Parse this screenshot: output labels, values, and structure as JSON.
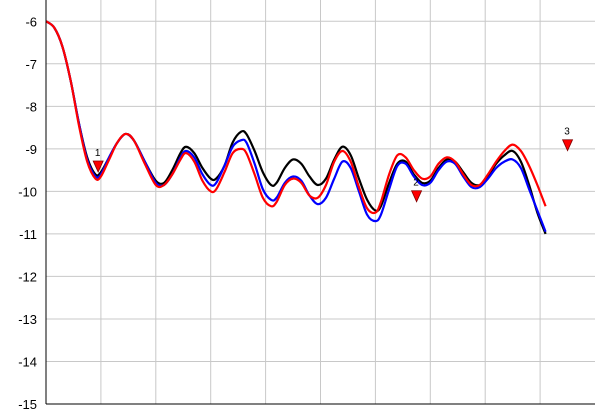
{
  "chart_data": {
    "type": "line",
    "title": "",
    "xlabel": "",
    "ylabel": "",
    "ylim": [
      -15,
      -5.5
    ],
    "xlim": [
      0,
      100
    ],
    "yticks": [
      "-6",
      "-7",
      "-8",
      "-9",
      "-10",
      "-11",
      "-12",
      "-13",
      "-14",
      "-15"
    ],
    "ytick_values": [
      -6,
      -7,
      -8,
      -9,
      -10,
      -11,
      -12,
      -13,
      -14,
      -15
    ],
    "xgrid": [
      10,
      20,
      30,
      40,
      50,
      60,
      70,
      80,
      90
    ],
    "grid": true,
    "legend": "none",
    "series": [
      {
        "color": "#000000",
        "points": [
          [
            0,
            -6.0
          ],
          [
            1.5,
            -6.15
          ],
          [
            3,
            -6.6
          ],
          [
            4.5,
            -7.4
          ],
          [
            6,
            -8.4
          ],
          [
            7.5,
            -9.2
          ],
          [
            9,
            -9.6
          ],
          [
            10,
            -9.55
          ],
          [
            11.5,
            -9.2
          ],
          [
            13,
            -8.85
          ],
          [
            14.5,
            -8.65
          ],
          [
            16,
            -8.8
          ],
          [
            18,
            -9.3
          ],
          [
            20,
            -9.75
          ],
          [
            21.5,
            -9.8
          ],
          [
            23,
            -9.5
          ],
          [
            24.5,
            -9.1
          ],
          [
            25.5,
            -8.95
          ],
          [
            27,
            -9.1
          ],
          [
            28.5,
            -9.45
          ],
          [
            30,
            -9.7
          ],
          [
            31,
            -9.7
          ],
          [
            32.5,
            -9.4
          ],
          [
            34,
            -8.85
          ],
          [
            35.5,
            -8.6
          ],
          [
            36.5,
            -8.65
          ],
          [
            38,
            -9.05
          ],
          [
            39.5,
            -9.55
          ],
          [
            41,
            -9.85
          ],
          [
            42,
            -9.8
          ],
          [
            43.5,
            -9.45
          ],
          [
            45,
            -9.25
          ],
          [
            46.5,
            -9.35
          ],
          [
            48,
            -9.65
          ],
          [
            49.5,
            -9.85
          ],
          [
            51,
            -9.7
          ],
          [
            52.5,
            -9.25
          ],
          [
            54,
            -8.95
          ],
          [
            55.5,
            -9.15
          ],
          [
            57,
            -9.7
          ],
          [
            58.5,
            -10.2
          ],
          [
            60,
            -10.45
          ],
          [
            61,
            -10.35
          ],
          [
            62.5,
            -9.8
          ],
          [
            64,
            -9.35
          ],
          [
            65.5,
            -9.3
          ],
          [
            67,
            -9.6
          ],
          [
            68.5,
            -9.8
          ],
          [
            70,
            -9.75
          ],
          [
            71.5,
            -9.45
          ],
          [
            73,
            -9.25
          ],
          [
            74.5,
            -9.3
          ],
          [
            76,
            -9.55
          ],
          [
            77.5,
            -9.8
          ],
          [
            79,
            -9.85
          ],
          [
            80.5,
            -9.65
          ],
          [
            82,
            -9.35
          ],
          [
            83.5,
            -9.15
          ],
          [
            85,
            -9.05
          ],
          [
            86.5,
            -9.3
          ],
          [
            88,
            -9.85
          ],
          [
            89.5,
            -10.5
          ],
          [
            91,
            -11.0
          ]
        ]
      },
      {
        "color": "#0000ff",
        "points": [
          [
            0,
            -6.0
          ],
          [
            1.5,
            -6.15
          ],
          [
            3,
            -6.6
          ],
          [
            4.5,
            -7.4
          ],
          [
            6,
            -8.4
          ],
          [
            7.5,
            -9.25
          ],
          [
            9,
            -9.65
          ],
          [
            10,
            -9.6
          ],
          [
            11.5,
            -9.2
          ],
          [
            13,
            -8.85
          ],
          [
            14.5,
            -8.65
          ],
          [
            16,
            -8.8
          ],
          [
            18,
            -9.3
          ],
          [
            20,
            -9.8
          ],
          [
            21.5,
            -9.85
          ],
          [
            23,
            -9.6
          ],
          [
            24.5,
            -9.2
          ],
          [
            25.5,
            -9.05
          ],
          [
            27,
            -9.2
          ],
          [
            28.5,
            -9.6
          ],
          [
            30,
            -9.85
          ],
          [
            31,
            -9.8
          ],
          [
            32.5,
            -9.4
          ],
          [
            34,
            -8.95
          ],
          [
            35.5,
            -8.8
          ],
          [
            36.5,
            -8.85
          ],
          [
            38,
            -9.35
          ],
          [
            39.5,
            -9.95
          ],
          [
            41,
            -10.2
          ],
          [
            42,
            -10.15
          ],
          [
            43.5,
            -9.8
          ],
          [
            45,
            -9.65
          ],
          [
            46.5,
            -9.75
          ],
          [
            48,
            -10.1
          ],
          [
            49.5,
            -10.3
          ],
          [
            51,
            -10.15
          ],
          [
            52.5,
            -9.7
          ],
          [
            54,
            -9.3
          ],
          [
            55.5,
            -9.45
          ],
          [
            57,
            -10.0
          ],
          [
            58.5,
            -10.55
          ],
          [
            60,
            -10.7
          ],
          [
            61,
            -10.55
          ],
          [
            62.5,
            -9.95
          ],
          [
            64,
            -9.4
          ],
          [
            65.5,
            -9.35
          ],
          [
            67,
            -9.65
          ],
          [
            68.5,
            -9.85
          ],
          [
            70,
            -9.8
          ],
          [
            71.5,
            -9.5
          ],
          [
            73,
            -9.3
          ],
          [
            74.5,
            -9.35
          ],
          [
            76,
            -9.65
          ],
          [
            77.5,
            -9.9
          ],
          [
            79,
            -9.9
          ],
          [
            80.5,
            -9.7
          ],
          [
            82,
            -9.45
          ],
          [
            83.5,
            -9.3
          ],
          [
            85,
            -9.25
          ],
          [
            86.5,
            -9.45
          ],
          [
            88,
            -9.95
          ],
          [
            89.5,
            -10.45
          ],
          [
            91,
            -10.95
          ]
        ]
      },
      {
        "color": "#ff0000",
        "points": [
          [
            0,
            -6.0
          ],
          [
            1.5,
            -6.15
          ],
          [
            3,
            -6.6
          ],
          [
            4.5,
            -7.4
          ],
          [
            6,
            -8.45
          ],
          [
            7.5,
            -9.3
          ],
          [
            9,
            -9.7
          ],
          [
            10,
            -9.65
          ],
          [
            11.5,
            -9.25
          ],
          [
            13,
            -8.85
          ],
          [
            14.5,
            -8.65
          ],
          [
            16,
            -8.8
          ],
          [
            18,
            -9.35
          ],
          [
            20,
            -9.85
          ],
          [
            21.5,
            -9.85
          ],
          [
            23,
            -9.6
          ],
          [
            24.5,
            -9.25
          ],
          [
            25.5,
            -9.1
          ],
          [
            27,
            -9.3
          ],
          [
            28.5,
            -9.75
          ],
          [
            30,
            -10.0
          ],
          [
            31,
            -9.95
          ],
          [
            32.5,
            -9.55
          ],
          [
            34,
            -9.1
          ],
          [
            35.5,
            -9.0
          ],
          [
            36.5,
            -9.1
          ],
          [
            38,
            -9.6
          ],
          [
            39.5,
            -10.15
          ],
          [
            41,
            -10.35
          ],
          [
            42,
            -10.25
          ],
          [
            43.5,
            -9.85
          ],
          [
            45,
            -9.7
          ],
          [
            46.5,
            -9.8
          ],
          [
            48,
            -10.1
          ],
          [
            49.5,
            -10.15
          ],
          [
            51,
            -9.85
          ],
          [
            52.5,
            -9.3
          ],
          [
            54,
            -9.05
          ],
          [
            55.5,
            -9.3
          ],
          [
            57,
            -9.9
          ],
          [
            58.5,
            -10.4
          ],
          [
            60,
            -10.5
          ],
          [
            61,
            -10.25
          ],
          [
            62.5,
            -9.6
          ],
          [
            64,
            -9.15
          ],
          [
            65.5,
            -9.2
          ],
          [
            67,
            -9.5
          ],
          [
            68.5,
            -9.7
          ],
          [
            70,
            -9.65
          ],
          [
            71.5,
            -9.35
          ],
          [
            73,
            -9.2
          ],
          [
            74.5,
            -9.3
          ],
          [
            76,
            -9.6
          ],
          [
            77.5,
            -9.85
          ],
          [
            79,
            -9.85
          ],
          [
            80.5,
            -9.6
          ],
          [
            82,
            -9.3
          ],
          [
            83.5,
            -9.05
          ],
          [
            85,
            -8.9
          ],
          [
            86.5,
            -9.05
          ],
          [
            88,
            -9.4
          ],
          [
            89.5,
            -9.85
          ],
          [
            91,
            -10.35
          ]
        ]
      }
    ],
    "annotations": [
      {
        "label": "1",
        "x": 9.5,
        "y": -9.45
      },
      {
        "label": "2",
        "x": 67.5,
        "y": -10.15
      },
      {
        "label": "3",
        "x": 95,
        "y": -8.95
      }
    ],
    "marker_color": "#ff0000"
  }
}
